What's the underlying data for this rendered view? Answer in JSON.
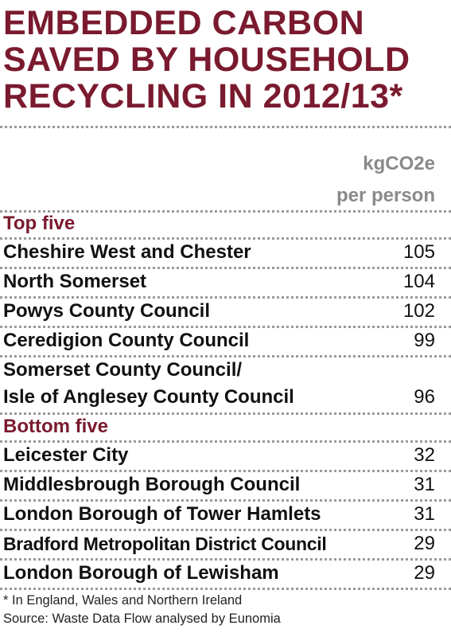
{
  "title_lines": [
    "EMBEDDED CARBON",
    "SAVED BY HOUSEHOLD",
    "RECYCLING IN 2012/13*"
  ],
  "unit_lines": [
    "kgCO2e",
    "per person"
  ],
  "sections": {
    "top": {
      "label": "Top five",
      "rows": [
        {
          "name": "Cheshire West and Chester",
          "value": "105"
        },
        {
          "name": "North Somerset",
          "value": "104"
        },
        {
          "name": "Powys County Council",
          "value": "102"
        },
        {
          "name": "Ceredigion County Council",
          "value": "99"
        },
        {
          "name_line1": "Somerset County Council/",
          "name": "Isle of Anglesey County Council",
          "value": "96"
        }
      ]
    },
    "bottom": {
      "label": "Bottom five",
      "rows": [
        {
          "name": "Leicester City",
          "value": "32"
        },
        {
          "name": "Middlesbrough Borough Council",
          "value": "31"
        },
        {
          "name": "London Borough of Tower Hamlets",
          "value": "31"
        },
        {
          "name": "Bradford Metropolitan District Council",
          "value": "29"
        },
        {
          "name": "London Borough of Lewisham",
          "value": "29"
        }
      ]
    }
  },
  "footnotes": [
    "* In England, Wales and Northern Ireland",
    "Source: Waste Data Flow analysed by Eunomia"
  ],
  "colors": {
    "accent": "#7a1a2e",
    "unit_grey": "#8a8a8a",
    "rule": "#9a9a9a"
  }
}
